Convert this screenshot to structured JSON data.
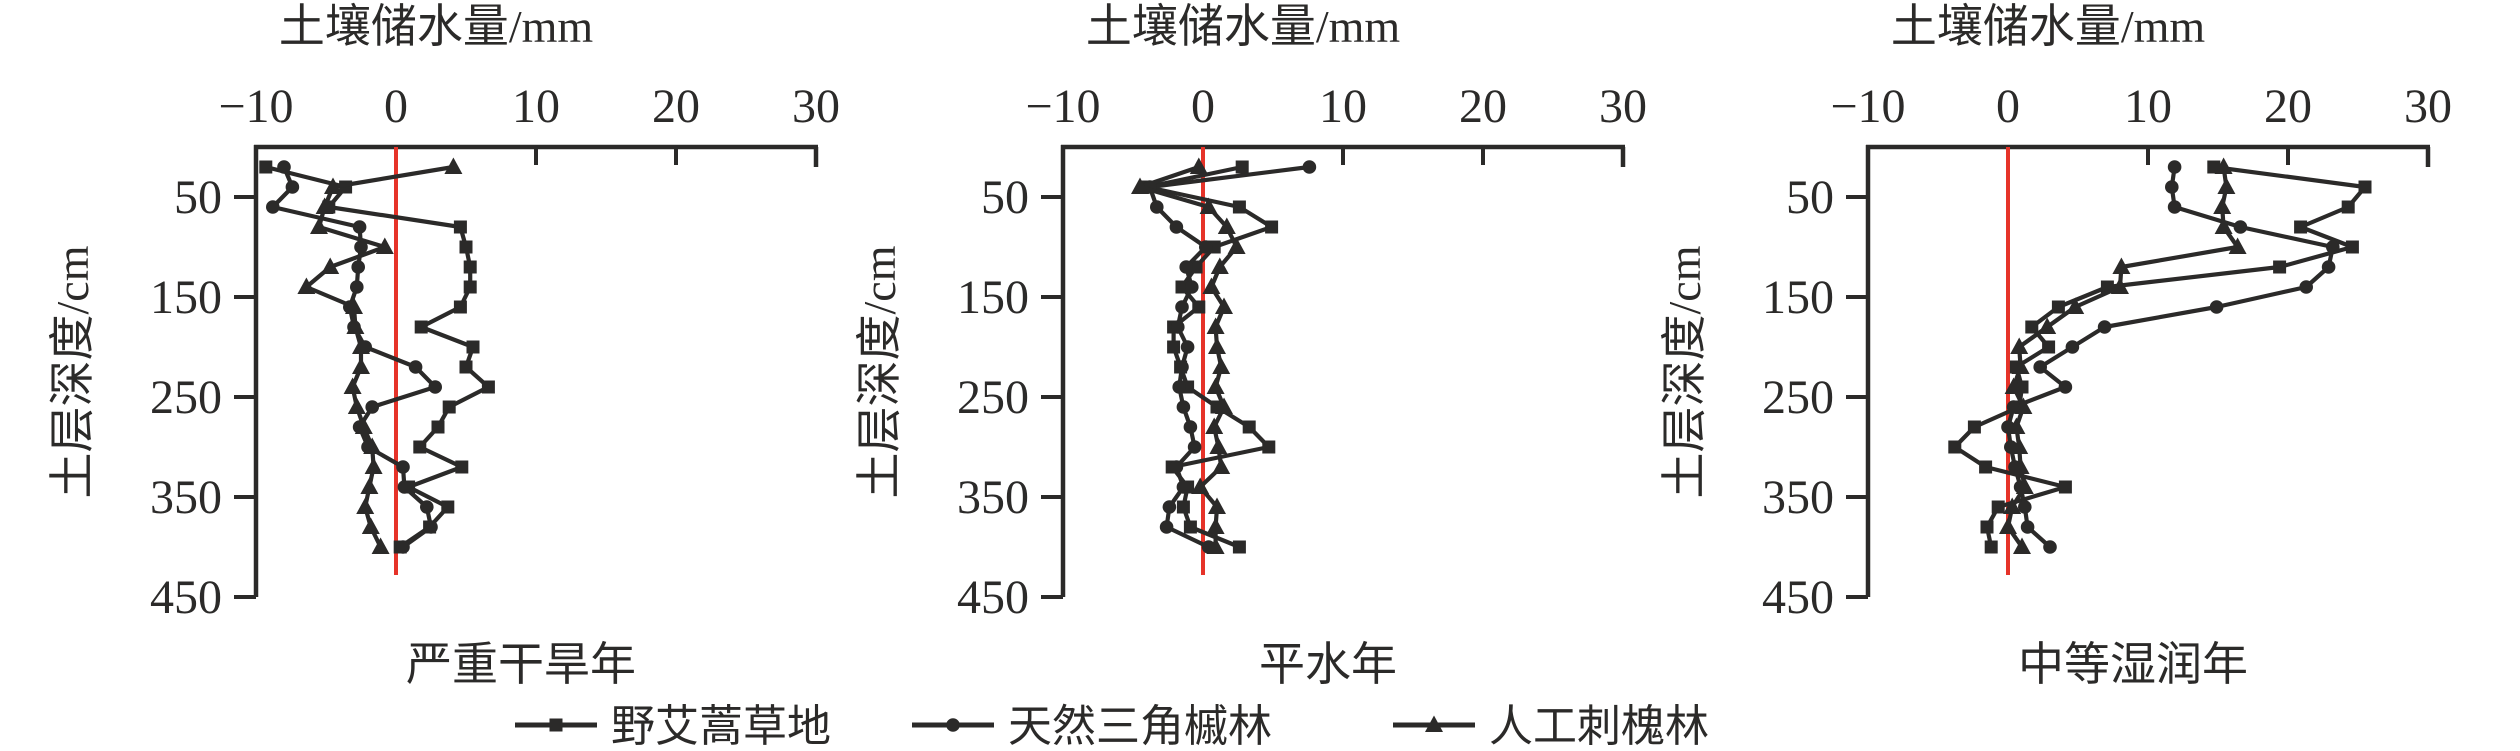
{
  "figure": {
    "axis_title": "土壤储水量/mm",
    "y_axis_title": "土层深度/cm",
    "panel_captions": [
      "严重干旱年",
      "平水年",
      "中等湿润年"
    ],
    "legend": [
      {
        "label": "野艾蒿草地",
        "marker": "square"
      },
      {
        "label": "天然三角槭林",
        "marker": "circle"
      },
      {
        "label": "人工刺槐林",
        "marker": "triangle"
      }
    ],
    "colors": {
      "line": "#2b2a29",
      "zero_line": "#e63329",
      "background": "#ffffff"
    }
  },
  "chart_data": [
    {
      "type": "line",
      "title": "严重干旱年",
      "xlabel": "土壤储水量/mm",
      "ylabel": "土层深度/cm",
      "xlim": [
        -10,
        30
      ],
      "ylim": [
        0,
        450
      ],
      "x_ticks": [
        -10,
        0,
        10,
        20,
        30
      ],
      "y_ticks": [
        50,
        150,
        250,
        350,
        450
      ],
      "y_inverted": true,
      "grid": false,
      "reference_line_x": 0,
      "depths_cm": [
        20,
        40,
        60,
        80,
        100,
        120,
        140,
        160,
        180,
        200,
        220,
        240,
        260,
        280,
        300,
        320,
        340,
        360,
        380,
        400
      ],
      "series": [
        {
          "name": "野艾蒿草地",
          "marker": "square",
          "values": [
            -9.3,
            -3.6,
            -4.8,
            4.6,
            5.0,
            5.3,
            5.3,
            4.6,
            1.8,
            5.5,
            5.0,
            6.6,
            3.8,
            3.0,
            1.7,
            4.7,
            0.9,
            3.7,
            2.4,
            0.3
          ]
        },
        {
          "name": "天然三角槭林",
          "marker": "circle",
          "values": [
            -8.0,
            -7.4,
            -8.8,
            -2.6,
            -2.5,
            -2.7,
            -2.8,
            -3.3,
            -3.0,
            -2.2,
            1.4,
            2.8,
            -1.7,
            -2.6,
            -2.0,
            0.5,
            0.6,
            2.2,
            2.5,
            0.5
          ]
        },
        {
          "name": "人工刺槐林",
          "marker": "triangle",
          "values": [
            4.1,
            -4.5,
            -5.1,
            -5.5,
            -0.8,
            -4.7,
            -6.4,
            -3.0,
            -2.9,
            -2.5,
            -2.5,
            -3.1,
            -2.8,
            -2.3,
            -1.7,
            -1.6,
            -1.9,
            -2.2,
            -1.8,
            -1.1
          ]
        }
      ]
    },
    {
      "type": "line",
      "title": "平水年",
      "xlabel": "土壤储水量/mm",
      "ylabel": "土层深度/cm",
      "xlim": [
        -10,
        30
      ],
      "ylim": [
        0,
        450
      ],
      "x_ticks": [
        -10,
        0,
        10,
        20,
        30
      ],
      "y_ticks": [
        50,
        150,
        250,
        350,
        450
      ],
      "y_inverted": true,
      "grid": false,
      "reference_line_x": 0,
      "depths_cm": [
        20,
        40,
        60,
        80,
        100,
        120,
        140,
        160,
        180,
        200,
        220,
        240,
        260,
        280,
        300,
        320,
        340,
        360,
        380,
        400
      ],
      "series": [
        {
          "name": "野艾蒿草地",
          "marker": "square",
          "values": [
            2.8,
            -4.0,
            2.6,
            4.9,
            0.8,
            -0.5,
            -1.5,
            -0.3,
            -2.1,
            -2.1,
            -1.6,
            -1.1,
            1.0,
            3.3,
            4.7,
            -2.2,
            -1.1,
            -1.4,
            -0.9,
            2.6
          ]
        },
        {
          "name": "天然三角槭林",
          "marker": "circle",
          "values": [
            7.6,
            -3.8,
            -3.3,
            -1.9,
            0.2,
            -1.2,
            -0.8,
            -1.5,
            -1.8,
            -1.1,
            -1.5,
            -1.7,
            -1.4,
            -0.9,
            -0.6,
            -1.9,
            -1.4,
            -2.4,
            -2.6,
            0.4
          ]
        },
        {
          "name": "人工刺槐林",
          "marker": "triangle",
          "values": [
            -0.3,
            -4.5,
            0.4,
            1.7,
            2.4,
            1.2,
            0.6,
            1.5,
            0.9,
            1.0,
            1.3,
            0.9,
            1.5,
            0.8,
            1.1,
            1.3,
            -0.2,
            1.0,
            0.9,
            0.9
          ]
        }
      ]
    },
    {
      "type": "line",
      "title": "中等湿润年",
      "xlabel": "土壤储水量/mm",
      "ylabel": "土层深度/cm",
      "xlim": [
        -10,
        30
      ],
      "ylim": [
        0,
        450
      ],
      "x_ticks": [
        -10,
        0,
        10,
        20,
        30
      ],
      "y_ticks": [
        50,
        150,
        250,
        350,
        450
      ],
      "y_inverted": true,
      "grid": false,
      "reference_line_x": 0,
      "depths_cm": [
        20,
        40,
        60,
        80,
        100,
        120,
        140,
        160,
        180,
        200,
        220,
        240,
        260,
        280,
        300,
        320,
        340,
        360,
        380,
        400
      ],
      "series": [
        {
          "name": "野艾蒿草地",
          "marker": "square",
          "values": [
            14.7,
            25.5,
            24.3,
            20.9,
            24.6,
            19.4,
            7.1,
            3.6,
            1.7,
            2.9,
            0.6,
            1.0,
            0.8,
            -2.4,
            -3.8,
            -1.6,
            4.1,
            -0.7,
            -1.5,
            -1.2
          ]
        },
        {
          "name": "天然三角槭林",
          "marker": "circle",
          "values": [
            11.9,
            11.7,
            11.9,
            16.6,
            23.2,
            22.9,
            21.3,
            14.9,
            6.9,
            4.6,
            2.3,
            4.1,
            0.4,
            0.0,
            0.2,
            0.5,
            0.9,
            1.2,
            1.4,
            3.0
          ]
        },
        {
          "name": "人工刺槐林",
          "marker": "triangle",
          "values": [
            15.4,
            15.6,
            15.3,
            15.4,
            16.4,
            8.1,
            8.0,
            4.8,
            2.8,
            0.8,
            0.9,
            0.4,
            1.1,
            0.6,
            0.8,
            0.9,
            1.2,
            0.3,
            0.0,
            1.0
          ]
        }
      ]
    }
  ]
}
